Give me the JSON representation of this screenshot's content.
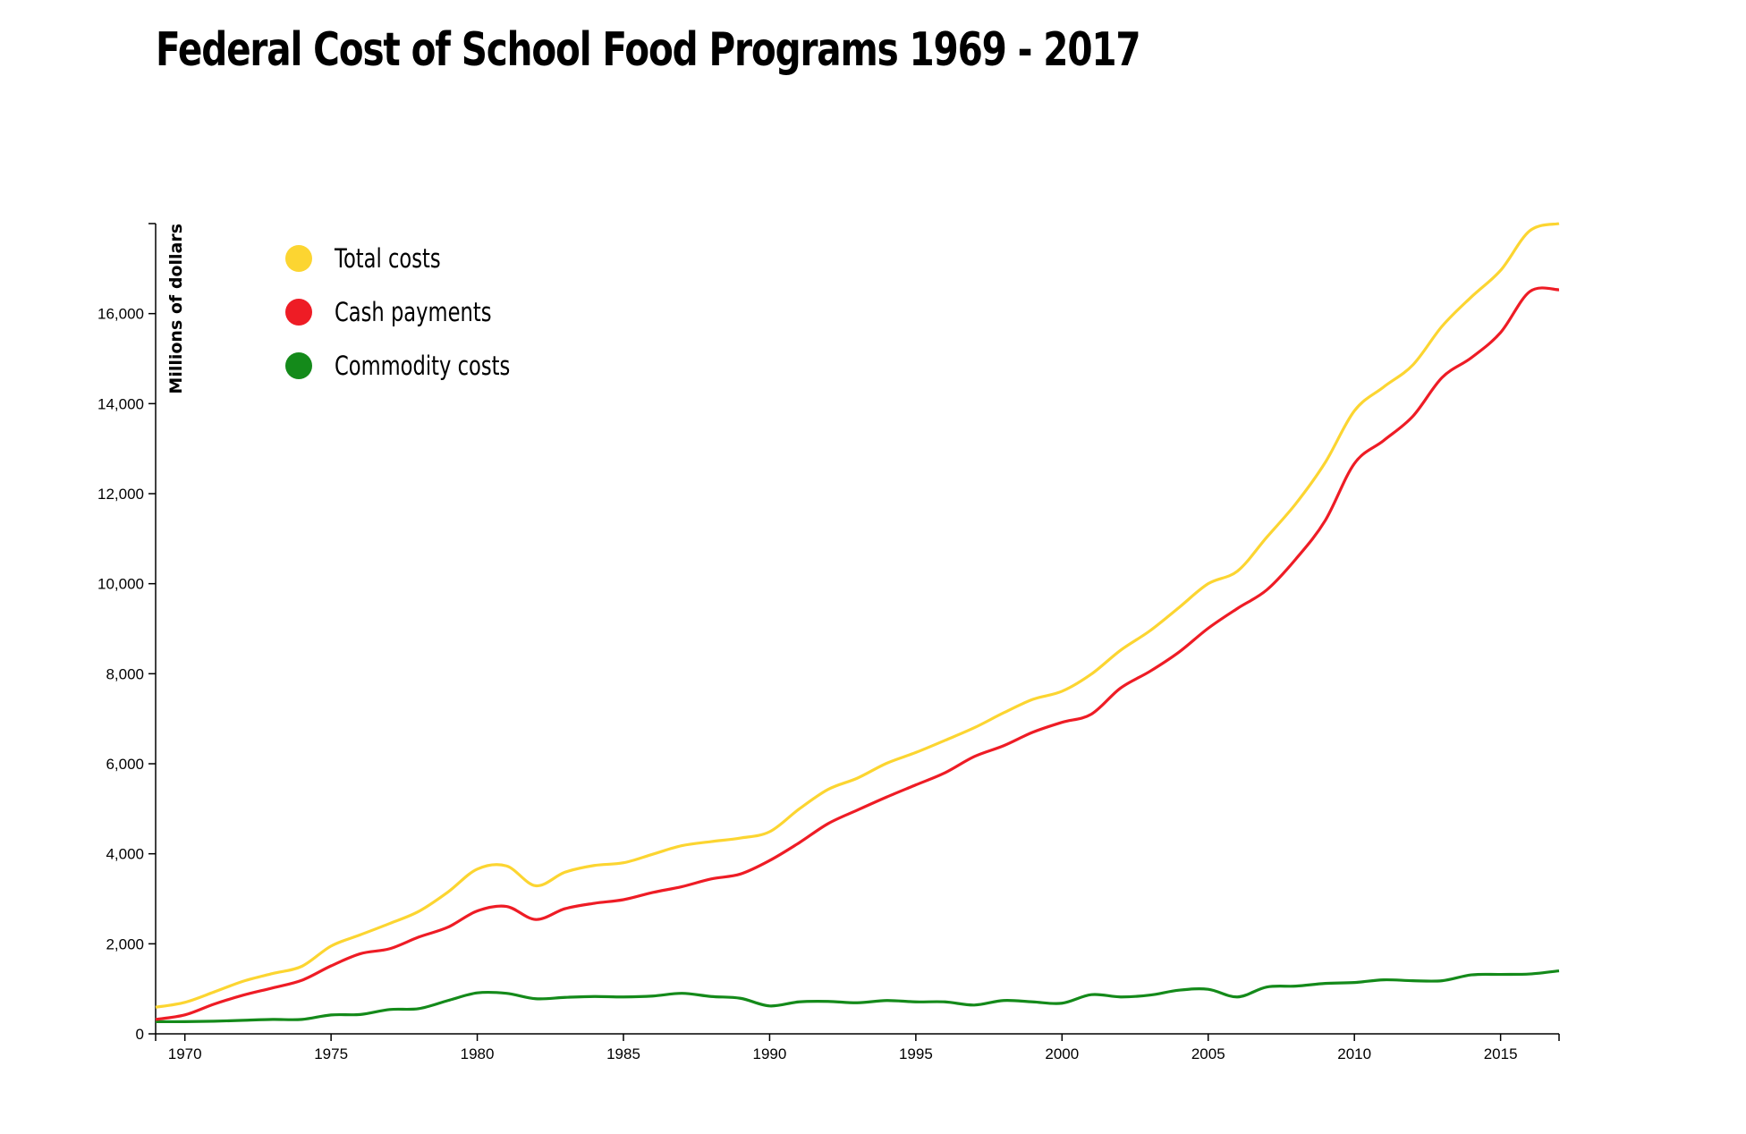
{
  "chart_data": {
    "type": "line",
    "title": "Federal Cost of School Food Programs 1969 - 2017",
    "xlabel": "",
    "ylabel": "Millions of dollars",
    "xlim": [
      1969,
      2017
    ],
    "ylim": [
      0,
      18000
    ],
    "xticks": [
      "1970",
      "1975",
      "1980",
      "1985",
      "1990",
      "1995",
      "2000",
      "2005",
      "2010",
      "2015"
    ],
    "yticks": [
      "0",
      "2,000",
      "4,000",
      "6,000",
      "8,000",
      "10,000",
      "12,000",
      "14,000",
      "16,000"
    ],
    "legend_position": "top-left",
    "x": [
      1969,
      1970,
      1971,
      1972,
      1973,
      1974,
      1975,
      1976,
      1977,
      1978,
      1979,
      1980,
      1981,
      1982,
      1983,
      1984,
      1985,
      1986,
      1987,
      1988,
      1989,
      1990,
      1991,
      1992,
      1993,
      1994,
      1995,
      1996,
      1997,
      1998,
      1999,
      2000,
      2001,
      2002,
      2003,
      2004,
      2005,
      2006,
      2007,
      2008,
      2009,
      2010,
      2011,
      2012,
      2013,
      2014,
      2015,
      2016,
      2017
    ],
    "series": [
      {
        "name": "Total costs",
        "color": "#fcd531",
        "values": [
          590,
          700,
          930,
          1170,
          1340,
          1500,
          1950,
          2200,
          2450,
          2720,
          3150,
          3660,
          3730,
          3290,
          3590,
          3740,
          3800,
          3990,
          4180,
          4270,
          4350,
          4490,
          4990,
          5430,
          5680,
          6010,
          6250,
          6520,
          6800,
          7130,
          7430,
          7610,
          7990,
          8520,
          8950,
          9470,
          10000,
          10280,
          11030,
          11780,
          12690,
          13840,
          14370,
          14860,
          15720,
          16370,
          16960,
          17840,
          18000
        ]
      },
      {
        "name": "Cash payments",
        "color": "#ee1c25",
        "values": [
          320,
          420,
          660,
          860,
          1020,
          1190,
          1510,
          1780,
          1890,
          2150,
          2370,
          2730,
          2830,
          2540,
          2780,
          2900,
          2980,
          3140,
          3270,
          3440,
          3550,
          3850,
          4240,
          4670,
          4970,
          5260,
          5530,
          5800,
          6160,
          6400,
          6700,
          6920,
          7100,
          7680,
          8050,
          8480,
          9010,
          9450,
          9860,
          10550,
          11400,
          12670,
          13180,
          13720,
          14580,
          15020,
          15580,
          16490,
          16530
        ]
      },
      {
        "name": "Commodity costs",
        "color": "#148a1a",
        "values": [
          270,
          270,
          280,
          300,
          320,
          320,
          420,
          430,
          540,
          560,
          740,
          910,
          900,
          780,
          810,
          830,
          820,
          840,
          900,
          830,
          790,
          620,
          710,
          720,
          690,
          740,
          710,
          710,
          640,
          740,
          710,
          680,
          870,
          820,
          860,
          970,
          990,
          820,
          1040,
          1060,
          1120,
          1140,
          1200,
          1180,
          1180,
          1310,
          1320,
          1330,
          1400
        ]
      }
    ]
  }
}
